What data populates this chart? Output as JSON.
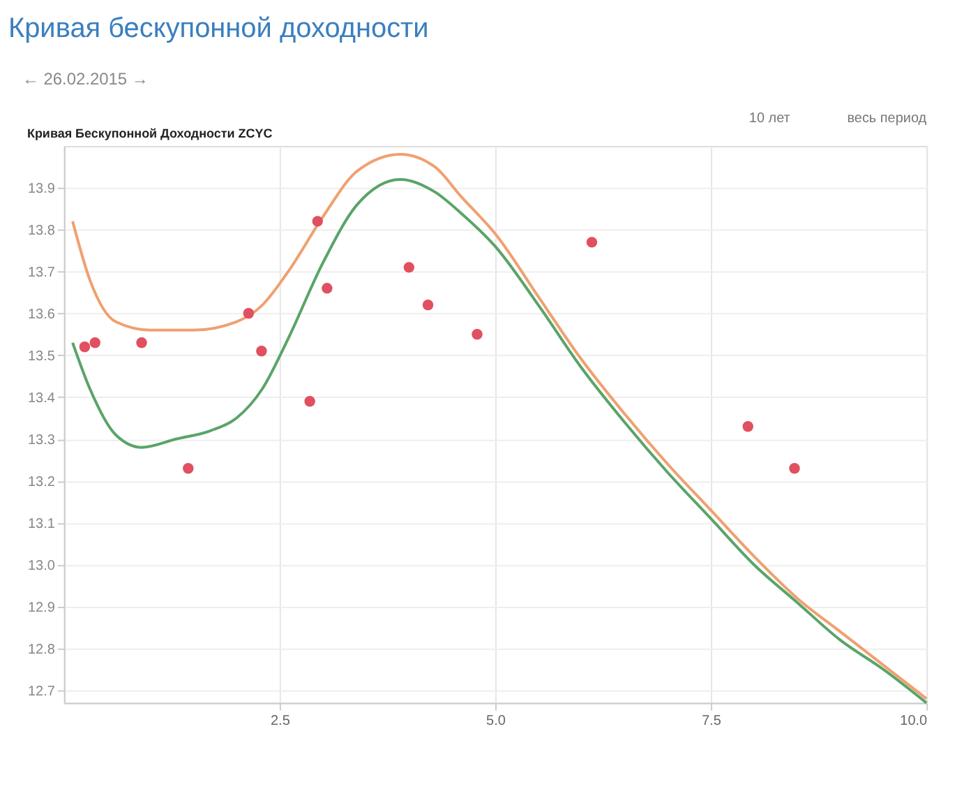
{
  "chart_data": {
    "type": "line",
    "title": "Кривая бескупонной доходности",
    "subtitle": "Кривая Бескупонной Доходности  ZCYC",
    "annotations": [
      "← 26.02.2015 →",
      "10 лет",
      "весь период"
    ],
    "xlim": [
      0,
      10
    ],
    "ylim": [
      12.67,
      14.0
    ],
    "xticks": [
      {
        "value": 2.5,
        "label": "2.5"
      },
      {
        "value": 5,
        "label": "5.0"
      },
      {
        "value": 7.5,
        "label": "7.5"
      },
      {
        "value": 10,
        "label": "10.0"
      }
    ],
    "yticks": [
      12.7,
      12.8,
      12.9,
      {
        "value": 13.0,
        "label": "13.0"
      },
      13.1,
      13.2,
      13.3,
      13.4,
      13.5,
      13.6,
      13.7,
      13.8,
      13.9
    ],
    "grid": true,
    "series": [
      {
        "color": "#f0a070",
        "x": [
          0.1,
          0.3,
          0.6,
          1.0,
          1.5,
          2.0,
          2.3,
          2.6,
          3.0,
          3.4,
          3.9,
          4.3,
          4.6,
          5.0,
          5.5,
          6.0,
          6.5,
          7.0,
          7.5,
          8.0,
          8.5,
          9.0,
          9.5,
          10.0
        ],
        "values": [
          13.82,
          13.68,
          13.58,
          13.56,
          13.56,
          13.58,
          13.62,
          13.7,
          13.83,
          13.94,
          13.98,
          13.95,
          13.88,
          13.79,
          13.64,
          13.49,
          13.36,
          13.24,
          13.13,
          13.02,
          12.92,
          12.84,
          12.76,
          12.68
        ]
      },
      {
        "color": "#5aa469",
        "x": [
          0.1,
          0.3,
          0.6,
          0.9,
          1.3,
          1.7,
          2.0,
          2.3,
          2.6,
          3.0,
          3.4,
          3.9,
          4.3,
          4.6,
          5.0,
          5.5,
          6.0,
          6.5,
          7.0,
          7.5,
          8.0,
          8.5,
          9.0,
          9.5,
          10.0
        ],
        "values": [
          13.53,
          13.42,
          13.31,
          13.28,
          13.3,
          13.32,
          13.35,
          13.42,
          13.54,
          13.72,
          13.86,
          13.92,
          13.89,
          13.84,
          13.76,
          13.62,
          13.47,
          13.34,
          13.22,
          13.11,
          13.0,
          12.91,
          12.82,
          12.75,
          12.67
        ]
      },
      {
        "color": "#e05060",
        "type": "scatter",
        "marker": "circle",
        "x": [
          0.24,
          0.36,
          0.9,
          1.44,
          2.14,
          2.29,
          2.85,
          2.94,
          3.05,
          4.0,
          4.22,
          4.79,
          6.12,
          7.93,
          8.47
        ],
        "values": [
          13.52,
          13.53,
          13.53,
          13.23,
          13.6,
          13.51,
          13.39,
          13.82,
          13.66,
          13.71,
          13.62,
          13.55,
          13.77,
          13.33,
          13.23
        ]
      }
    ]
  }
}
